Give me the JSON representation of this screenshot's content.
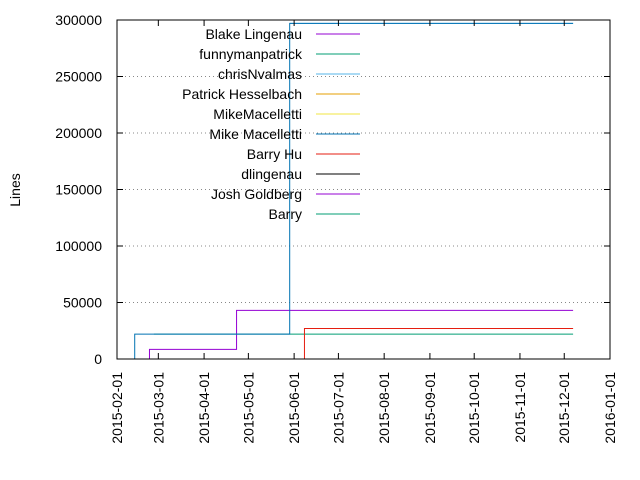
{
  "chart_data": {
    "type": "line",
    "title": "",
    "xlabel": "",
    "ylabel": "Lines",
    "xlim": [
      "2015-02-01",
      "2016-01-01"
    ],
    "ylim": [
      0,
      300000
    ],
    "x_ticks": [
      "2015-02-01",
      "2015-03-01",
      "2015-04-01",
      "2015-05-01",
      "2015-06-01",
      "2015-07-01",
      "2015-08-01",
      "2015-09-01",
      "2015-10-01",
      "2015-11-01",
      "2015-12-01",
      "2016-01-01"
    ],
    "y_ticks": [
      "0",
      "50000",
      "100000",
      "150000",
      "200000",
      "250000",
      "300000"
    ],
    "y_tick_values": [
      0,
      50000,
      100000,
      150000,
      200000,
      250000,
      300000
    ],
    "grid": "horizontal dotted",
    "legend_position": "top-left",
    "series": [
      {
        "name": "Blake Lingenau",
        "color": "#9400d3",
        "step": true,
        "points": [
          [
            "2015-02-13",
            0
          ],
          [
            "2015-02-23",
            8500
          ],
          [
            "2015-04-19",
            8500
          ],
          [
            "2015-04-23",
            43000
          ],
          [
            "2015-12-07",
            43000
          ]
        ]
      },
      {
        "name": "funnymanpatrick",
        "color": "#009e73",
        "step": true,
        "points": [
          [
            "2015-02-26",
            22000
          ],
          [
            "2015-12-07",
            22000
          ]
        ]
      },
      {
        "name": "chrisNvalmas",
        "color": "#56b4e9",
        "step": true,
        "points": [
          [
            "2015-05-29",
            297000
          ],
          [
            "2015-12-07",
            297000
          ]
        ]
      },
      {
        "name": "Patrick Hesselbach",
        "color": "#e69f00",
        "step": true,
        "points": []
      },
      {
        "name": "MikeMacelletti",
        "color": "#f0e442",
        "step": true,
        "points": []
      },
      {
        "name": "Mike Macelletti",
        "color": "#0072b2",
        "step": true,
        "points": [
          [
            "2015-02-13",
            0
          ],
          [
            "2015-02-13",
            22000
          ],
          [
            "2015-05-29",
            22000
          ],
          [
            "2015-05-29",
            297000
          ],
          [
            "2015-12-07",
            297000
          ]
        ]
      },
      {
        "name": "Barry Hu",
        "color": "#e51e10",
        "step": true,
        "points": [
          [
            "2015-06-01",
            0
          ],
          [
            "2015-06-06",
            0
          ],
          [
            "2015-06-08",
            27000
          ],
          [
            "2015-12-07",
            27000
          ]
        ]
      },
      {
        "name": "dlingenau",
        "color": "#000000",
        "step": true,
        "points": []
      },
      {
        "name": "Josh Goldberg",
        "color": "#9400d3",
        "step": true,
        "points": []
      },
      {
        "name": "Barry",
        "color": "#009e73",
        "step": true,
        "points": []
      }
    ]
  }
}
